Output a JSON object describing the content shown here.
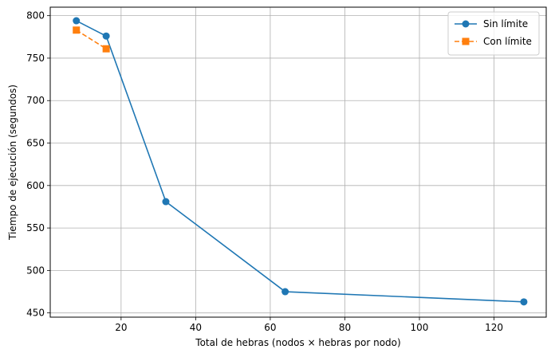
{
  "chart_data": {
    "type": "line",
    "title": "",
    "xlabel": "Total de hebras (nodos × hebras por nodo)",
    "ylabel": "Tiempo de ejecución (segundos)",
    "xlim": [
      1.0,
      134.0
    ],
    "ylim": [
      445.0,
      810.0
    ],
    "xticks": [
      20,
      40,
      60,
      80,
      100,
      120
    ],
    "yticks": [
      450,
      500,
      550,
      600,
      650,
      700,
      750,
      800
    ],
    "grid": true,
    "legend_position": "top-right",
    "series": [
      {
        "name": "Sin límite",
        "color": "#1f77b4",
        "marker": "circle",
        "linestyle": "solid",
        "x": [
          8,
          16,
          32,
          64,
          128
        ],
        "y": [
          794,
          776,
          581,
          475,
          463
        ]
      },
      {
        "name": "Con límite",
        "color": "#ff7f0e",
        "marker": "square",
        "linestyle": "dashed",
        "x": [
          8,
          16
        ],
        "y": [
          783,
          761
        ]
      }
    ]
  }
}
